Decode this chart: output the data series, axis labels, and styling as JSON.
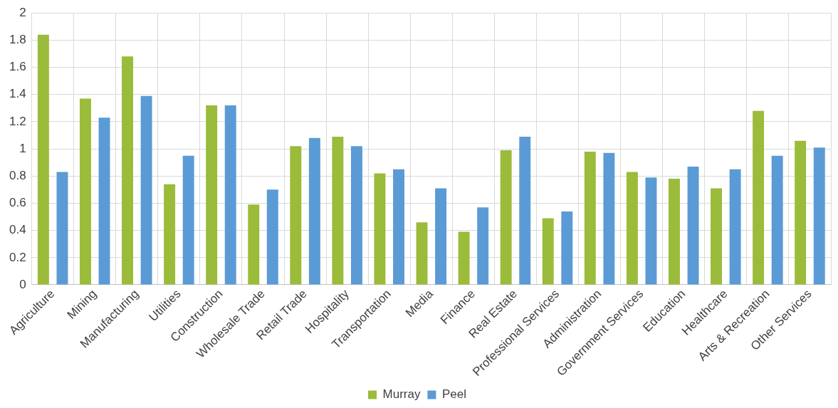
{
  "chart_data": {
    "type": "bar",
    "categories": [
      "Agriculture",
      "Mining",
      "Manufacturing",
      "Utilities",
      "Construction",
      "Wholesale Trade",
      "Retail Trade",
      "Hospitality",
      "Transportation",
      "Media",
      "Finance",
      "Real Estate",
      "Professional Services",
      "Administration",
      "Government Services",
      "Education",
      "Healthcare",
      "Arts & Recreation",
      "Other Services"
    ],
    "series": [
      {
        "name": "Murray",
        "color": "#9bbb3b",
        "values": [
          1.84,
          1.37,
          1.68,
          0.74,
          1.32,
          0.59,
          1.02,
          1.09,
          0.82,
          0.46,
          0.39,
          0.99,
          0.49,
          0.98,
          0.83,
          0.78,
          0.71,
          1.28,
          1.06
        ]
      },
      {
        "name": "Peel",
        "color": "#5b9bd5",
        "values": [
          0.83,
          1.23,
          1.39,
          0.95,
          1.32,
          0.7,
          1.08,
          1.02,
          0.85,
          0.71,
          0.57,
          1.09,
          0.54,
          0.97,
          0.79,
          0.87,
          0.85,
          0.95,
          1.01
        ]
      }
    ],
    "ylim": [
      0,
      2
    ],
    "yticks": [
      0,
      0.2,
      0.4,
      0.6,
      0.8,
      1,
      1.2,
      1.4,
      1.6,
      1.8,
      2
    ],
    "grid": true,
    "legend": "bottom"
  }
}
